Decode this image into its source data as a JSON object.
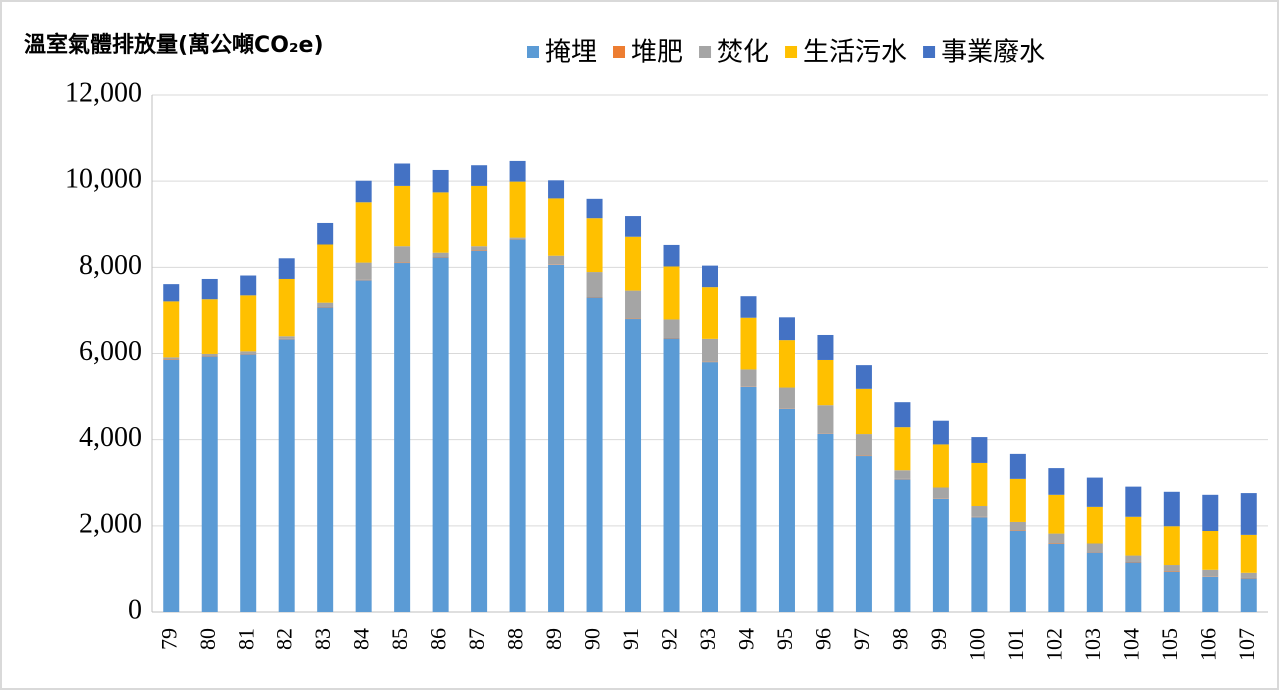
{
  "chart_data": {
    "type": "stacked_bar",
    "title": "溫室氣體排放量(萬公噸CO₂e)",
    "categories": [
      "79",
      "80",
      "81",
      "82",
      "83",
      "84",
      "85",
      "86",
      "87",
      "88",
      "89",
      "90",
      "91",
      "92",
      "93",
      "94",
      "95",
      "96",
      "97",
      "98",
      "99",
      "100",
      "101",
      "102",
      "103",
      "104",
      "105",
      "106",
      "107"
    ],
    "series": [
      {
        "name": "掩埋",
        "color": "#5b9bd5",
        "values": [
          5850,
          5930,
          5980,
          6330,
          7070,
          7700,
          8100,
          8230,
          8380,
          8650,
          8060,
          7300,
          6800,
          6350,
          5800,
          5230,
          4720,
          4140,
          3620,
          3080,
          2630,
          2200,
          1880,
          1580,
          1380,
          1150,
          930,
          820,
          780
        ]
      },
      {
        "name": "堆肥",
        "color": "#ed7d31",
        "values": [
          10,
          10,
          10,
          10,
          10,
          10,
          10,
          10,
          10,
          10,
          10,
          10,
          10,
          10,
          10,
          10,
          10,
          10,
          10,
          10,
          10,
          10,
          10,
          10,
          10,
          10,
          10,
          10,
          10
        ]
      },
      {
        "name": "焚化",
        "color": "#a5a5a5",
        "values": [
          50,
          50,
          60,
          60,
          100,
          400,
          380,
          100,
          100,
          30,
          200,
          580,
          650,
          430,
          530,
          390,
          480,
          650,
          500,
          200,
          250,
          250,
          200,
          230,
          200,
          150,
          150,
          150,
          120
        ]
      },
      {
        "name": "生活污水",
        "color": "#ffc000",
        "values": [
          1300,
          1270,
          1300,
          1330,
          1350,
          1400,
          1400,
          1400,
          1400,
          1300,
          1330,
          1250,
          1250,
          1230,
          1200,
          1200,
          1100,
          1050,
          1050,
          1000,
          1000,
          1000,
          1000,
          900,
          850,
          900,
          900,
          900,
          880
        ]
      },
      {
        "name": "事業廢水",
        "color": "#4472c4",
        "values": [
          400,
          470,
          460,
          480,
          500,
          500,
          520,
          520,
          480,
          480,
          420,
          450,
          480,
          500,
          500,
          500,
          530,
          580,
          550,
          580,
          550,
          600,
          580,
          620,
          680,
          700,
          800,
          840,
          970
        ]
      }
    ],
    "ylim": [
      0,
      12000
    ],
    "yticks": [
      0,
      {
        "value": 2000,
        "label": "2,000"
      },
      {
        "value": 4000,
        "label": "4,000"
      },
      {
        "value": 6000,
        "label": "6,000"
      },
      {
        "value": 8000,
        "label": "8,000"
      },
      {
        "value": 10000,
        "label": "10,000"
      },
      {
        "value": 12000,
        "label": "12,000"
      }
    ],
    "grid": true,
    "legend": "top"
  }
}
